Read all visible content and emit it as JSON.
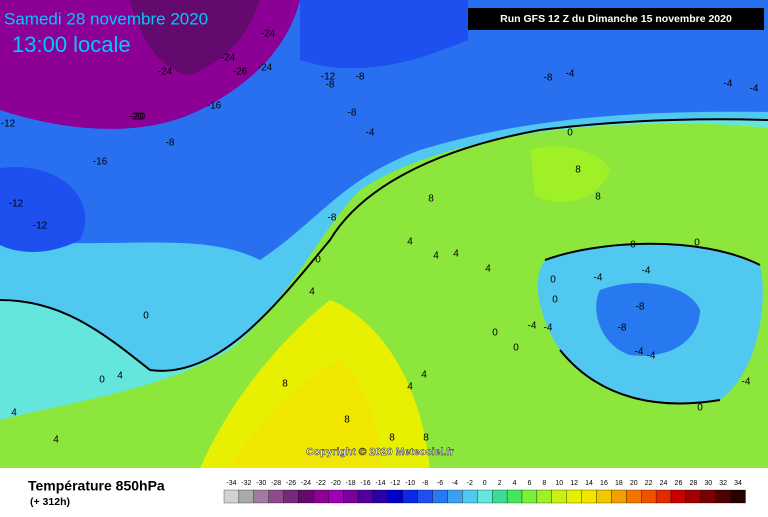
{
  "header": {
    "date": "Samedi 28 novembre 2020",
    "time": "13:00 locale",
    "run": "Run GFS 12 Z du Dimanche 15 novembre 2020"
  },
  "copyright": "Copyright © 2020 Meteociel.fr",
  "footer": {
    "field": "Température 850hPa",
    "lead": "(+ 312h)"
  },
  "contour_labels": [
    -24,
    -24,
    -24,
    -26,
    -20,
    -24,
    -12,
    -8,
    -8,
    -8,
    -8,
    -4,
    -4,
    0,
    -16,
    -20,
    -12,
    -8,
    -16,
    -12,
    -12,
    -8,
    -4,
    -4,
    0,
    4,
    8,
    8,
    4,
    4,
    8,
    4,
    4,
    0,
    0,
    0,
    0,
    -4,
    -4,
    -8,
    -8,
    -4,
    -4,
    0,
    0,
    -4,
    -4,
    -4,
    0,
    4,
    4,
    8,
    8,
    8,
    8,
    0,
    0,
    4,
    4,
    4
  ],
  "scale": {
    "ticks": [
      -34,
      -32,
      -30,
      -28,
      -26,
      -24,
      -22,
      -20,
      -18,
      -16,
      -14,
      -12,
      -10,
      -8,
      -6,
      -4,
      -2,
      0,
      2,
      4,
      6,
      8,
      10,
      12,
      14,
      16,
      18,
      20,
      22,
      24,
      26,
      28,
      30,
      32,
      34
    ],
    "colors": [
      "#d2d2d2",
      "#aaaaaa",
      "#a07ca0",
      "#8c4c8c",
      "#782878",
      "#640a6e",
      "#8c0096",
      "#a000b4",
      "#78009b",
      "#50009b",
      "#2800a5",
      "#0000c8",
      "#0a28e6",
      "#1e50f0",
      "#2878f0",
      "#3ca0f0",
      "#50c8f0",
      "#64e6dc",
      "#3cdc96",
      "#46e65a",
      "#78f03c",
      "#a0f028",
      "#c8f014",
      "#e6f000",
      "#f0e600",
      "#f0c800",
      "#f0a000",
      "#f07800",
      "#f05000",
      "#e62800",
      "#c80000",
      "#a00000",
      "#780000",
      "#500000",
      "#280000"
    ]
  }
}
